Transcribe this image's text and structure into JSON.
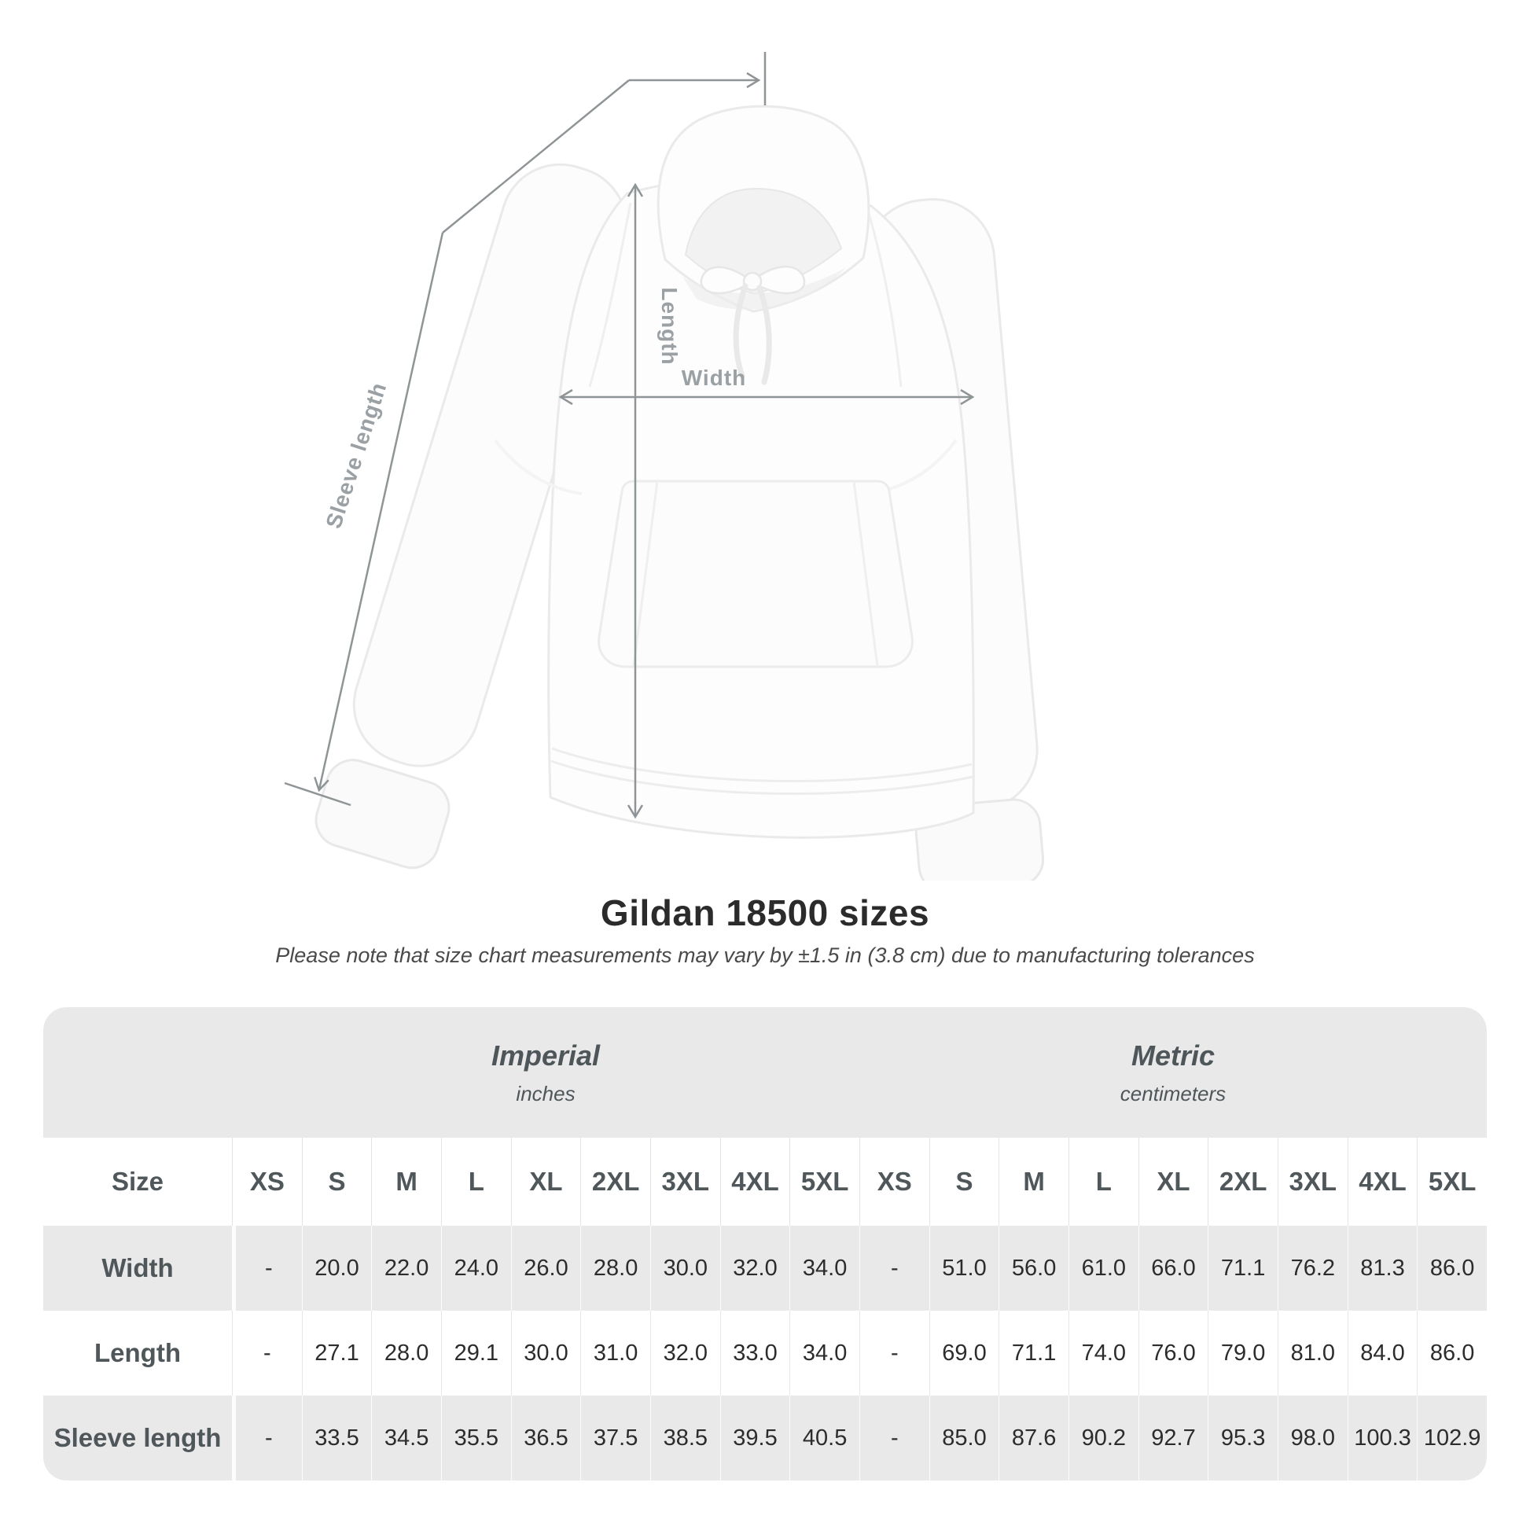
{
  "figure": {
    "measurement_labels": {
      "length": "Length",
      "width": "Width",
      "sleeve_length": "Sleeve length"
    },
    "line_color": "#8f9496",
    "label_color": "#9aa0a3"
  },
  "heading": {
    "title": "Gildan 18500 sizes",
    "subtitle": "Please note that size chart measurements may vary by ±1.5 in (3.8 cm) due to manufacturing tolerances"
  },
  "table": {
    "size_label": "Size",
    "unit_groups": [
      {
        "name": "Imperial",
        "unit": "inches"
      },
      {
        "name": "Metric",
        "unit": "centimeters"
      }
    ],
    "sizes": [
      "XS",
      "S",
      "M",
      "L",
      "XL",
      "2XL",
      "3XL",
      "4XL",
      "5XL"
    ],
    "rows": [
      {
        "label": "Width",
        "imperial": [
          "-",
          "20.0",
          "22.0",
          "24.0",
          "26.0",
          "28.0",
          "30.0",
          "32.0",
          "34.0"
        ],
        "metric": [
          "-",
          "51.0",
          "56.0",
          "61.0",
          "66.0",
          "71.1",
          "76.2",
          "81.3",
          "86.0"
        ]
      },
      {
        "label": "Length",
        "imperial": [
          "-",
          "27.1",
          "28.0",
          "29.1",
          "30.0",
          "31.0",
          "32.0",
          "33.0",
          "34.0"
        ],
        "metric": [
          "-",
          "69.0",
          "71.1",
          "74.0",
          "76.0",
          "79.0",
          "81.0",
          "84.0",
          "86.0"
        ]
      },
      {
        "label": "Sleeve length",
        "imperial": [
          "-",
          "33.5",
          "34.5",
          "35.5",
          "36.5",
          "37.5",
          "38.5",
          "39.5",
          "40.5"
        ],
        "metric": [
          "-",
          "85.0",
          "87.6",
          "90.2",
          "92.7",
          "95.3",
          "98.0",
          "100.3",
          "102.9"
        ]
      }
    ],
    "stripe_color": "#e9e9e9",
    "value_text_color": "#2c2c2c",
    "label_text_color": "#50575b"
  },
  "chart_data": {
    "type": "table",
    "title": "Gildan 18500 sizes",
    "subtitle": "Please note that size chart measurements may vary by ±1.5 in (3.8 cm) due to manufacturing tolerances",
    "unit_groups": [
      {
        "name": "Imperial",
        "unit": "inches"
      },
      {
        "name": "Metric",
        "unit": "centimeters"
      }
    ],
    "sizes": [
      "XS",
      "S",
      "M",
      "L",
      "XL",
      "2XL",
      "3XL",
      "4XL",
      "5XL"
    ],
    "rows": [
      {
        "measurement": "Width",
        "imperial_inches": [
          null,
          20.0,
          22.0,
          24.0,
          26.0,
          28.0,
          30.0,
          32.0,
          34.0
        ],
        "metric_centimeters": [
          null,
          51.0,
          56.0,
          61.0,
          66.0,
          71.1,
          76.2,
          81.3,
          86.0
        ]
      },
      {
        "measurement": "Length",
        "imperial_inches": [
          null,
          27.1,
          28.0,
          29.1,
          30.0,
          31.0,
          32.0,
          33.0,
          34.0
        ],
        "metric_centimeters": [
          null,
          69.0,
          71.1,
          74.0,
          76.0,
          79.0,
          81.0,
          84.0,
          86.0
        ]
      },
      {
        "measurement": "Sleeve length",
        "imperial_inches": [
          null,
          33.5,
          34.5,
          35.5,
          36.5,
          37.5,
          38.5,
          39.5,
          40.5
        ],
        "metric_centimeters": [
          null,
          85.0,
          87.6,
          90.2,
          92.7,
          95.3,
          98.0,
          100.3,
          102.9
        ]
      }
    ]
  }
}
